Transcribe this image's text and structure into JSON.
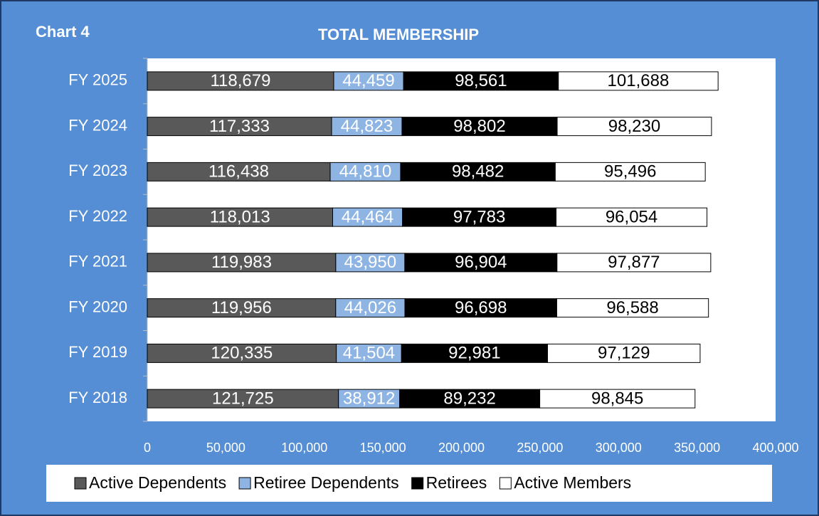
{
  "chart_data": {
    "type": "stacked-barh",
    "label": "Chart 4",
    "title": "TOTAL MEMBERSHIP",
    "categories": [
      "FY 2025",
      "FY 2024",
      "FY 2023",
      "FY 2022",
      "FY 2021",
      "FY 2020",
      "FY 2019",
      "FY 2018"
    ],
    "series": [
      {
        "name": "Active Dependents",
        "color": "#595959",
        "label_color": "#ffffff",
        "values": [
          118679,
          117333,
          116438,
          118013,
          119983,
          119956,
          120335,
          121725
        ],
        "value_labels": [
          "118,679",
          "117,333",
          "116,438",
          "118,013",
          "119,983",
          "119,956",
          "120,335",
          "121,725"
        ]
      },
      {
        "name": "Retiree Dependents",
        "color": "#8eb4e3",
        "label_color": "#ffffff",
        "values": [
          44459,
          44823,
          44810,
          44464,
          43950,
          44026,
          41504,
          38912
        ],
        "value_labels": [
          "44,459",
          "44,823",
          "44,810",
          "44,464",
          "43,950",
          "44,026",
          "41,504",
          "38,912"
        ]
      },
      {
        "name": "Retirees",
        "color": "#000000",
        "label_color": "#ffffff",
        "values": [
          98561,
          98802,
          98482,
          97783,
          96904,
          96698,
          92981,
          89232
        ],
        "value_labels": [
          "98,561",
          "98,802",
          "98,482",
          "97,783",
          "96,904",
          "96,698",
          "92,981",
          "89,232"
        ]
      },
      {
        "name": "Active Members",
        "color": "#ffffff",
        "label_color": "#000000",
        "values": [
          101688,
          98230,
          95496,
          96054,
          97877,
          96588,
          97129,
          98845
        ],
        "value_labels": [
          "101,688",
          "98,230",
          "95,496",
          "96,054",
          "97,877",
          "96,588",
          "97,129",
          "98,845"
        ]
      }
    ],
    "xlim": [
      0,
      400000
    ],
    "xticks": [
      0,
      {
        "value": 50000,
        "label": "50,000"
      },
      {
        "value": 100000,
        "label": "100,000"
      },
      {
        "value": 150000,
        "label": "150,000"
      },
      {
        "value": 200000,
        "label": "200,000"
      },
      {
        "value": 250000,
        "label": "250,000"
      },
      {
        "value": 300000,
        "label": "300,000"
      },
      {
        "value": 350000,
        "label": "350,000"
      },
      {
        "value": 400000,
        "label": "400,000"
      }
    ],
    "grid": false,
    "legend": "bottom"
  }
}
